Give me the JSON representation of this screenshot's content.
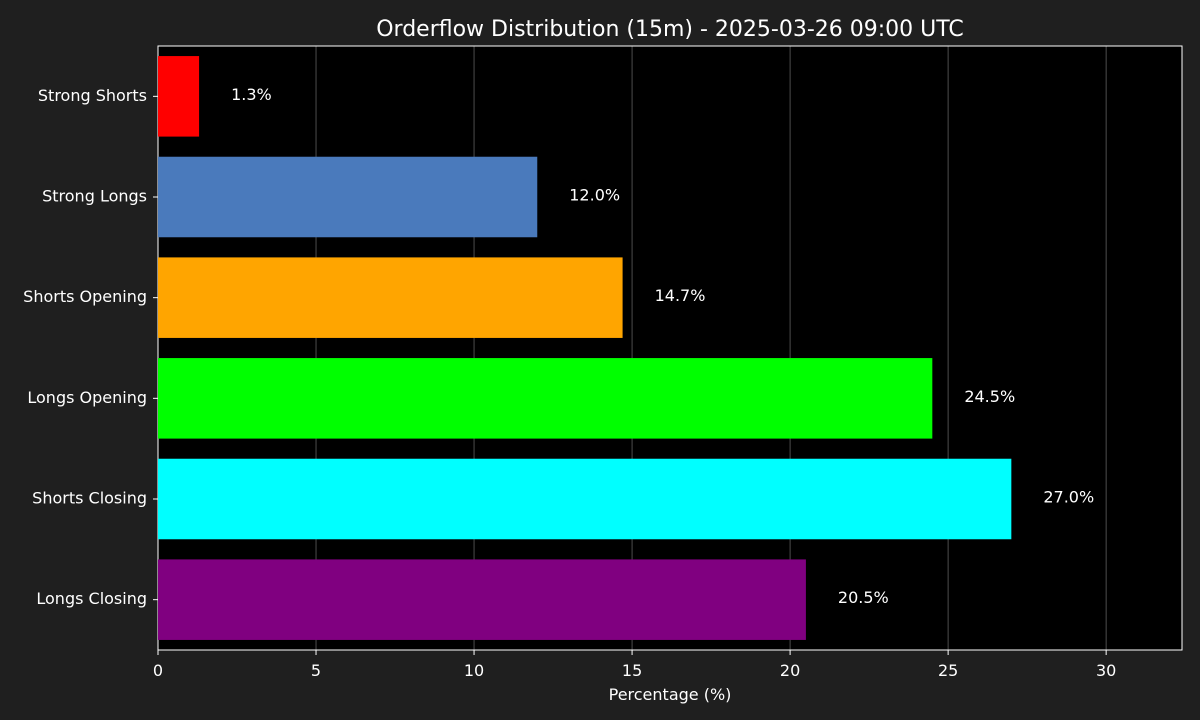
{
  "chart_data": {
    "type": "bar",
    "orientation": "horizontal",
    "title": "Orderflow Distribution (15m) - 2025-03-26 09:00 UTC",
    "xlabel": "Percentage (%)",
    "ylabel": "",
    "xlim": [
      0,
      32.4
    ],
    "xticks": [
      0,
      5,
      10,
      15,
      20,
      25,
      30
    ],
    "grid": "vertical",
    "categories": [
      "Strong Shorts",
      "Strong Longs",
      "Shorts Opening",
      "Longs Opening",
      "Shorts Closing",
      "Longs Closing"
    ],
    "values": [
      1.3,
      12.0,
      14.7,
      24.5,
      27.0,
      20.5
    ],
    "value_labels": [
      "1.3%",
      "12.0%",
      "14.7%",
      "24.5%",
      "27.0%",
      "20.5%"
    ],
    "colors": [
      "#ff0000",
      "#4a7abc",
      "#ffa500",
      "#00ff00",
      "#00ffff",
      "#800080"
    ],
    "background": "#000000",
    "figure_background": "#1f1f1f"
  }
}
